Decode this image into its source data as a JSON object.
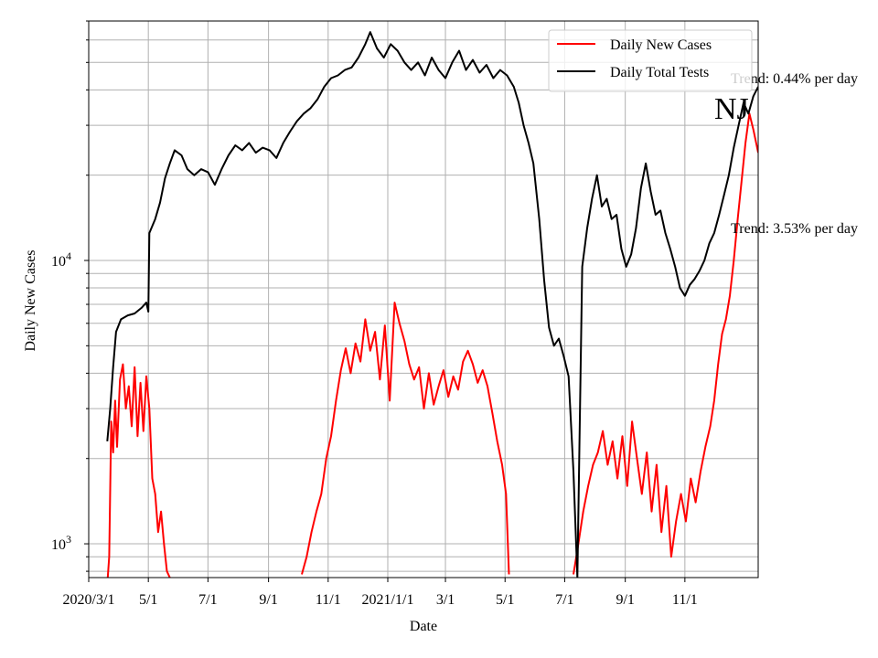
{
  "chart_data": {
    "type": "line",
    "title": "",
    "xlabel": "Date",
    "ylabel": "Daily New Cases",
    "yscale": "log",
    "ylim": [
      760,
      70000
    ],
    "grid": true,
    "legend_position": "top-right",
    "x_tick_labels": [
      {
        "date": "2020-03-01",
        "label": "2020/3/1"
      },
      {
        "date": "2020-05-01",
        "label": "5/1"
      },
      {
        "date": "2020-07-01",
        "label": "7/1"
      },
      {
        "date": "2020-09-01",
        "label": "9/1"
      },
      {
        "date": "2020-11-01",
        "label": "11/1"
      },
      {
        "date": "2021-01-01",
        "label": "2021/1/1"
      },
      {
        "date": "2021-03-01",
        "label": "3/1"
      },
      {
        "date": "2021-05-01",
        "label": "5/1"
      },
      {
        "date": "2021-07-01",
        "label": "7/1"
      },
      {
        "date": "2021-09-01",
        "label": "9/1"
      },
      {
        "date": "2021-11-01",
        "label": "11/1"
      }
    ],
    "y_ticks": [
      {
        "value": 1000,
        "label": "10^3",
        "base": "10",
        "exp": "3"
      },
      {
        "value": 10000,
        "label": "10^4",
        "base": "10",
        "exp": "4"
      }
    ],
    "xlim": [
      "2020-03-01",
      "2022-01-15"
    ],
    "series": [
      {
        "name": "Daily New Cases",
        "color": "#ff0000",
        "points": [
          [
            "2020-03-20",
            720
          ],
          [
            "2020-03-22",
            900
          ],
          [
            "2020-03-24",
            2700
          ],
          [
            "2020-03-26",
            2100
          ],
          [
            "2020-03-28",
            3200
          ],
          [
            "2020-03-30",
            2200
          ],
          [
            "2020-04-02",
            3800
          ],
          [
            "2020-04-05",
            4300
          ],
          [
            "2020-04-08",
            3000
          ],
          [
            "2020-04-11",
            3600
          ],
          [
            "2020-04-14",
            2600
          ],
          [
            "2020-04-17",
            4200
          ],
          [
            "2020-04-20",
            2400
          ],
          [
            "2020-04-23",
            3700
          ],
          [
            "2020-04-26",
            2500
          ],
          [
            "2020-04-29",
            3900
          ],
          [
            "2020-05-02",
            3000
          ],
          [
            "2020-05-05",
            1700
          ],
          [
            "2020-05-08",
            1500
          ],
          [
            "2020-05-11",
            1100
          ],
          [
            "2020-05-14",
            1300
          ],
          [
            "2020-05-17",
            1000
          ],
          [
            "2020-05-20",
            800
          ],
          [
            "2020-05-23",
            760
          ],
          [
            "2020-10-05",
            780
          ],
          [
            "2020-10-10",
            900
          ],
          [
            "2020-10-15",
            1100
          ],
          [
            "2020-10-20",
            1300
          ],
          [
            "2020-10-25",
            1500
          ],
          [
            "2020-10-30",
            2000
          ],
          [
            "2020-11-04",
            2400
          ],
          [
            "2020-11-09",
            3200
          ],
          [
            "2020-11-14",
            4100
          ],
          [
            "2020-11-19",
            4900
          ],
          [
            "2020-11-24",
            4000
          ],
          [
            "2020-11-29",
            5100
          ],
          [
            "2020-12-04",
            4400
          ],
          [
            "2020-12-09",
            6200
          ],
          [
            "2020-12-14",
            4800
          ],
          [
            "2020-12-19",
            5600
          ],
          [
            "2020-12-24",
            3800
          ],
          [
            "2020-12-29",
            5900
          ],
          [
            "2021-01-03",
            3200
          ],
          [
            "2021-01-08",
            7100
          ],
          [
            "2021-01-13",
            6000
          ],
          [
            "2021-01-18",
            5200
          ],
          [
            "2021-01-23",
            4300
          ],
          [
            "2021-01-28",
            3800
          ],
          [
            "2021-02-02",
            4200
          ],
          [
            "2021-02-07",
            3000
          ],
          [
            "2021-02-12",
            4000
          ],
          [
            "2021-02-17",
            3100
          ],
          [
            "2021-02-22",
            3600
          ],
          [
            "2021-02-27",
            4100
          ],
          [
            "2021-03-04",
            3300
          ],
          [
            "2021-03-09",
            3900
          ],
          [
            "2021-03-14",
            3500
          ],
          [
            "2021-03-19",
            4400
          ],
          [
            "2021-03-24",
            4800
          ],
          [
            "2021-03-29",
            4300
          ],
          [
            "2021-04-03",
            3700
          ],
          [
            "2021-04-08",
            4100
          ],
          [
            "2021-04-13",
            3600
          ],
          [
            "2021-04-18",
            2900
          ],
          [
            "2021-04-23",
            2300
          ],
          [
            "2021-04-28",
            1900
          ],
          [
            "2021-05-02",
            1500
          ],
          [
            "2021-05-05",
            780
          ],
          [
            "2021-07-10",
            780
          ],
          [
            "2021-07-15",
            1000
          ],
          [
            "2021-07-20",
            1300
          ],
          [
            "2021-07-25",
            1600
          ],
          [
            "2021-07-30",
            1900
          ],
          [
            "2021-08-04",
            2100
          ],
          [
            "2021-08-09",
            2500
          ],
          [
            "2021-08-14",
            1900
          ],
          [
            "2021-08-19",
            2300
          ],
          [
            "2021-08-24",
            1700
          ],
          [
            "2021-08-29",
            2400
          ],
          [
            "2021-09-03",
            1600
          ],
          [
            "2021-09-08",
            2700
          ],
          [
            "2021-09-13",
            2000
          ],
          [
            "2021-09-18",
            1500
          ],
          [
            "2021-09-23",
            2100
          ],
          [
            "2021-09-28",
            1300
          ],
          [
            "2021-10-03",
            1900
          ],
          [
            "2021-10-08",
            1100
          ],
          [
            "2021-10-13",
            1600
          ],
          [
            "2021-10-18",
            900
          ],
          [
            "2021-10-23",
            1200
          ],
          [
            "2021-10-28",
            1500
          ],
          [
            "2021-11-02",
            1200
          ],
          [
            "2021-11-07",
            1700
          ],
          [
            "2021-11-12",
            1400
          ],
          [
            "2021-11-17",
            1800
          ],
          [
            "2021-11-22",
            2200
          ],
          [
            "2021-11-27",
            2600
          ],
          [
            "2021-12-01",
            3200
          ],
          [
            "2021-12-05",
            4300
          ],
          [
            "2021-12-09",
            5500
          ],
          [
            "2021-12-13",
            6200
          ],
          [
            "2021-12-17",
            7500
          ],
          [
            "2021-12-21",
            10000
          ],
          [
            "2021-12-25",
            14000
          ],
          [
            "2021-12-29",
            19000
          ],
          [
            "2022-01-02",
            26000
          ],
          [
            "2022-01-06",
            33000
          ],
          [
            "2022-01-10",
            29000
          ],
          [
            "2022-01-15",
            24000
          ]
        ]
      },
      {
        "name": "Daily Total Tests",
        "color": "#000000",
        "points": [
          [
            "2020-03-20",
            2300
          ],
          [
            "2020-03-23",
            3000
          ],
          [
            "2020-03-26",
            4200
          ],
          [
            "2020-03-29",
            5600
          ],
          [
            "2020-04-03",
            6200
          ],
          [
            "2020-04-10",
            6400
          ],
          [
            "2020-04-17",
            6500
          ],
          [
            "2020-04-24",
            6800
          ],
          [
            "2020-04-29",
            7100
          ],
          [
            "2020-05-01",
            6600
          ],
          [
            "2020-05-02",
            12500
          ],
          [
            "2020-05-08",
            14000
          ],
          [
            "2020-05-13",
            16000
          ],
          [
            "2020-05-18",
            19500
          ],
          [
            "2020-05-23",
            22000
          ],
          [
            "2020-05-28",
            24500
          ],
          [
            "2020-06-04",
            23500
          ],
          [
            "2020-06-10",
            21000
          ],
          [
            "2020-06-17",
            20000
          ],
          [
            "2020-06-24",
            21000
          ],
          [
            "2020-07-01",
            20500
          ],
          [
            "2020-07-08",
            18500
          ],
          [
            "2020-07-15",
            21000
          ],
          [
            "2020-07-22",
            23500
          ],
          [
            "2020-07-29",
            25500
          ],
          [
            "2020-08-05",
            24500
          ],
          [
            "2020-08-12",
            26000
          ],
          [
            "2020-08-19",
            24000
          ],
          [
            "2020-08-26",
            25000
          ],
          [
            "2020-09-02",
            24500
          ],
          [
            "2020-09-09",
            23000
          ],
          [
            "2020-09-16",
            26000
          ],
          [
            "2020-09-23",
            28500
          ],
          [
            "2020-09-30",
            31000
          ],
          [
            "2020-10-07",
            33000
          ],
          [
            "2020-10-14",
            34500
          ],
          [
            "2020-10-21",
            37000
          ],
          [
            "2020-10-28",
            41000
          ],
          [
            "2020-11-04",
            44000
          ],
          [
            "2020-11-11",
            45000
          ],
          [
            "2020-11-18",
            47000
          ],
          [
            "2020-11-25",
            48000
          ],
          [
            "2020-12-02",
            52000
          ],
          [
            "2020-12-09",
            58000
          ],
          [
            "2020-12-14",
            64000
          ],
          [
            "2020-12-21",
            56000
          ],
          [
            "2020-12-28",
            52000
          ],
          [
            "2021-01-04",
            58000
          ],
          [
            "2021-01-11",
            55000
          ],
          [
            "2021-01-18",
            50000
          ],
          [
            "2021-01-25",
            47000
          ],
          [
            "2021-02-01",
            50000
          ],
          [
            "2021-02-08",
            45000
          ],
          [
            "2021-02-15",
            52000
          ],
          [
            "2021-02-22",
            47000
          ],
          [
            "2021-03-01",
            44000
          ],
          [
            "2021-03-08",
            50000
          ],
          [
            "2021-03-15",
            55000
          ],
          [
            "2021-03-22",
            47000
          ],
          [
            "2021-03-29",
            51000
          ],
          [
            "2021-04-05",
            46000
          ],
          [
            "2021-04-12",
            49000
          ],
          [
            "2021-04-19",
            44000
          ],
          [
            "2021-04-26",
            47000
          ],
          [
            "2021-05-03",
            45000
          ],
          [
            "2021-05-10",
            41000
          ],
          [
            "2021-05-15",
            36000
          ],
          [
            "2021-05-20",
            30000
          ],
          [
            "2021-05-25",
            26000
          ],
          [
            "2021-05-30",
            22000
          ],
          [
            "2021-06-05",
            14000
          ],
          [
            "2021-06-10",
            8500
          ],
          [
            "2021-06-15",
            5800
          ],
          [
            "2021-06-20",
            5000
          ],
          [
            "2021-06-25",
            5300
          ],
          [
            "2021-06-30",
            4600
          ],
          [
            "2021-07-05",
            3900
          ],
          [
            "2021-07-10",
            1800
          ],
          [
            "2021-07-14",
            760
          ],
          [
            "2021-07-19",
            9500
          ],
          [
            "2021-07-24",
            13000
          ],
          [
            "2021-07-29",
            16500
          ],
          [
            "2021-08-03",
            20000
          ],
          [
            "2021-08-08",
            15500
          ],
          [
            "2021-08-13",
            16500
          ],
          [
            "2021-08-18",
            14000
          ],
          [
            "2021-08-23",
            14500
          ],
          [
            "2021-08-28",
            11000
          ],
          [
            "2021-09-02",
            9500
          ],
          [
            "2021-09-07",
            10500
          ],
          [
            "2021-09-12",
            13000
          ],
          [
            "2021-09-17",
            18000
          ],
          [
            "2021-09-22",
            22000
          ],
          [
            "2021-09-27",
            17500
          ],
          [
            "2021-10-02",
            14500
          ],
          [
            "2021-10-07",
            15000
          ],
          [
            "2021-10-12",
            12500
          ],
          [
            "2021-10-17",
            11000
          ],
          [
            "2021-10-22",
            9500
          ],
          [
            "2021-10-27",
            8000
          ],
          [
            "2021-11-01",
            7500
          ],
          [
            "2021-11-06",
            8200
          ],
          [
            "2021-11-11",
            8600
          ],
          [
            "2021-11-16",
            9200
          ],
          [
            "2021-11-21",
            10000
          ],
          [
            "2021-11-26",
            11500
          ],
          [
            "2021-12-01",
            12500
          ],
          [
            "2021-12-06",
            14500
          ],
          [
            "2021-12-11",
            17000
          ],
          [
            "2021-12-16",
            20000
          ],
          [
            "2021-12-21",
            25000
          ],
          [
            "2021-12-26",
            30000
          ],
          [
            "2021-12-31",
            36000
          ],
          [
            "2022-01-05",
            33000
          ],
          [
            "2022-01-10",
            38000
          ],
          [
            "2022-01-15",
            41000
          ]
        ]
      }
    ],
    "annotations": [
      {
        "text": "Trend: 0.44% per day",
        "anchor": "upper-right"
      },
      {
        "text": "Trend: 3.53% per day",
        "anchor": "middle-right"
      },
      {
        "text": "NJ",
        "anchor": "upper-right-large"
      }
    ]
  }
}
